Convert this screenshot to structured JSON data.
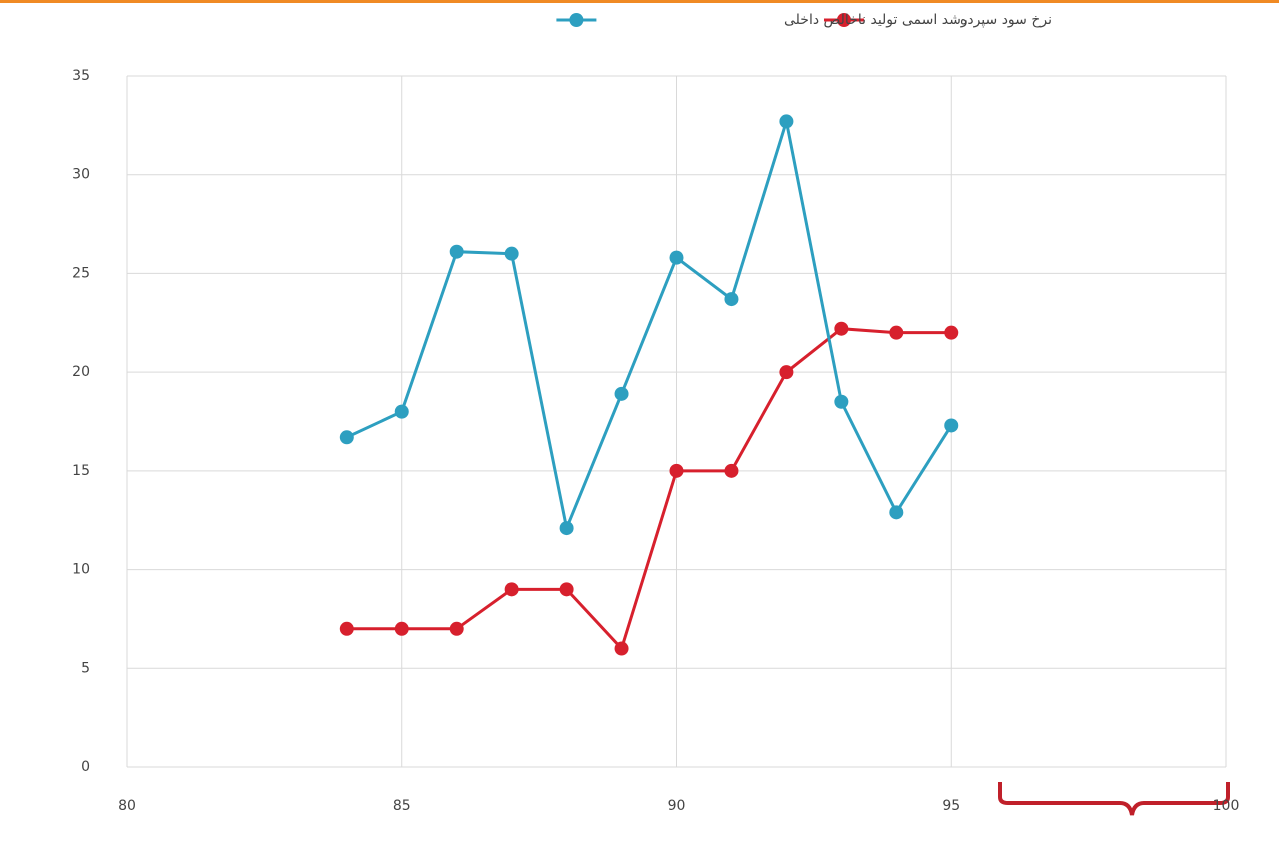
{
  "chart_data": {
    "type": "line",
    "x": [
      84,
      85,
      86,
      87,
      88,
      89,
      90,
      91,
      92,
      93,
      94,
      95
    ],
    "series": [
      {
        "name": "نرخ سود سپرده",
        "color": "#d7202d",
        "values": [
          7.0,
          7.0,
          7.0,
          9.0,
          9.0,
          6.0,
          15.0,
          15.0,
          20.0,
          22.2,
          22.0,
          22.0
        ]
      },
      {
        "name": "رشد اسمی تولید ناخالص داخلی",
        "color": "#2d9fc0",
        "values": [
          16.7,
          18.0,
          26.1,
          26.0,
          12.1,
          18.9,
          25.8,
          23.7,
          32.7,
          18.5,
          12.9,
          17.3
        ]
      }
    ],
    "xlim": [
      80,
      100
    ],
    "xticks": [
      80,
      85,
      90,
      95,
      100
    ],
    "ylim": [
      0,
      35
    ],
    "yticks": [
      0,
      5,
      10,
      15,
      20,
      25,
      30,
      35
    ],
    "grid": true,
    "legend": "top"
  }
}
